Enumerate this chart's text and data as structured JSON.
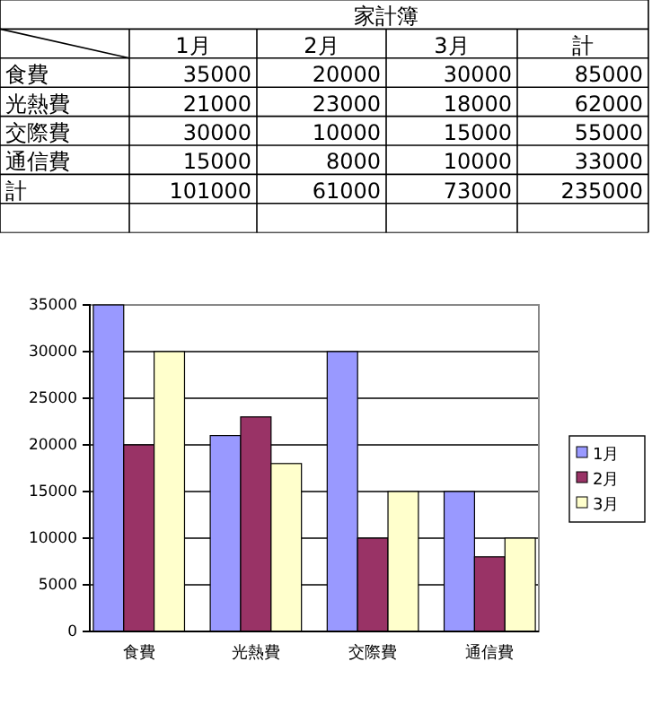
{
  "chart_data": {
    "type": "bar",
    "title": "家計簿",
    "categories": [
      "食費",
      "光熱費",
      "交際費",
      "通信費"
    ],
    "series": [
      {
        "name": "1月",
        "color": "#9999ff",
        "values": [
          35000,
          21000,
          30000,
          15000
        ]
      },
      {
        "name": "2月",
        "color": "#993366",
        "values": [
          20000,
          23000,
          10000,
          8000
        ]
      },
      {
        "name": "3月",
        "color": "#ffffcc",
        "values": [
          30000,
          18000,
          15000,
          10000
        ]
      }
    ],
    "ylim": [
      0,
      35000
    ],
    "yticks": [
      0,
      5000,
      10000,
      15000,
      20000,
      25000,
      30000,
      35000
    ],
    "grid": "y",
    "legend": "right",
    "annotations": [
      "計",
      "35000",
      "20000",
      "30000",
      "85000",
      "21000",
      "23000",
      "18000",
      "62000",
      "30000",
      "10000",
      "15000",
      "55000",
      "15000",
      "8000",
      "10000",
      "33000",
      "計",
      "101000",
      "61000",
      "73000",
      "235000"
    ]
  }
}
